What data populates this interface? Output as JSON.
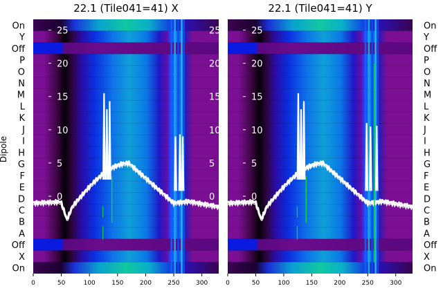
{
  "chart_data": [
    {
      "type": "heatmap",
      "title": "22.1 (Tile041=41) X",
      "ylabel": "Dipole",
      "xlim": [
        0,
        330
      ],
      "x_ticks": [
        "0",
        "50",
        "100",
        "150",
        "200",
        "250",
        "300"
      ],
      "power_axis_ticks": [
        "0",
        "5",
        "10",
        "15",
        "20",
        "25"
      ],
      "power_axis_range": [
        -3,
        28
      ],
      "rows": [
        "On",
        "Y",
        "Off",
        "P",
        "O",
        "N",
        "M",
        "L",
        "K",
        "J",
        "I",
        "H",
        "G",
        "F",
        "E",
        "D",
        "C",
        "B",
        "A",
        "Off",
        "X",
        "On"
      ],
      "spikes": [
        {
          "x": 126,
          "peak": 15.5
        },
        {
          "x": 136,
          "peak": 14.3
        },
        {
          "x": 131,
          "peak": 13.1
        },
        {
          "x": 253,
          "peak": 9.0
        },
        {
          "x": 261,
          "peak": 9.3
        },
        {
          "x": 266,
          "peak": 9.0
        }
      ],
      "green_lines": [
        {
          "x": 140,
          "from": -4,
          "to": 3
        }
      ]
    },
    {
      "type": "heatmap",
      "title": "22.1 (Tile041=41) Y",
      "ylabel": "Dipole",
      "xlim": [
        0,
        330
      ],
      "x_ticks": [
        "0",
        "50",
        "100",
        "150",
        "200",
        "250",
        "300"
      ],
      "power_axis_ticks": [
        "0",
        "5",
        "10",
        "15",
        "20",
        "25"
      ],
      "power_axis_range": [
        -3,
        28
      ],
      "rows": [
        "On",
        "Y",
        "Off",
        "P",
        "O",
        "N",
        "M",
        "L",
        "K",
        "J",
        "I",
        "H",
        "G",
        "F",
        "E",
        "D",
        "C",
        "B",
        "A",
        "Off",
        "X",
        "On"
      ],
      "spikes": [
        {
          "x": 126,
          "peak": 15.5
        },
        {
          "x": 136,
          "peak": 14.3
        },
        {
          "x": 131,
          "peak": 13.1
        },
        {
          "x": 248,
          "peak": 11.0
        },
        {
          "x": 255,
          "peak": 10.5
        },
        {
          "x": 266,
          "peak": 10.6
        }
      ],
      "green_lines": [
        {
          "x": 140,
          "from": -4,
          "to": 3
        },
        {
          "x": 262,
          "from": -10,
          "to": 20
        }
      ]
    }
  ]
}
